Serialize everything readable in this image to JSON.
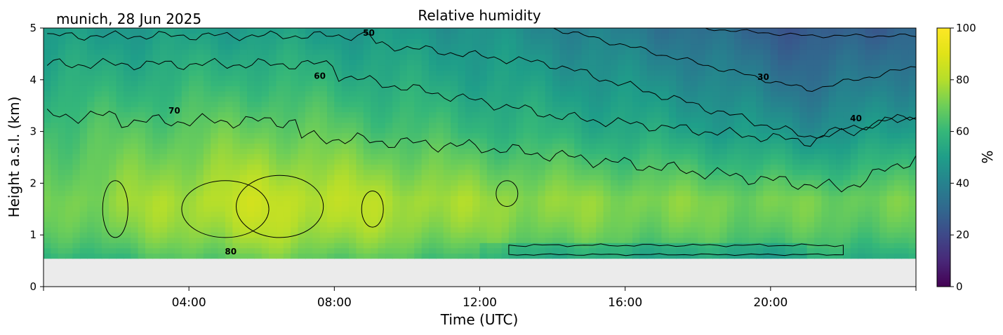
{
  "header": {
    "location_date": "munich, 28 Jun 2025",
    "title": "Relative humidity"
  },
  "chart_data": {
    "type": "heatmap",
    "title": "Relative humidity",
    "xlabel": "Time (UTC)",
    "ylabel": "Height a.s.l. (km)",
    "xlim_hours": [
      0,
      24
    ],
    "ylim": [
      0,
      5
    ],
    "x_ticks": [
      "04:00",
      "08:00",
      "12:00",
      "16:00",
      "20:00"
    ],
    "y_ticks": [
      "0",
      "1",
      "2",
      "3",
      "4",
      "5"
    ],
    "data_bottom_km": 0.55,
    "colorbar": {
      "label": "%",
      "range": [
        0,
        100
      ],
      "ticks": [
        "0",
        "20",
        "40",
        "60",
        "80",
        "100"
      ],
      "colormap": "viridis"
    },
    "missing_color": "#ebebeb",
    "contour_labels": [
      {
        "text": "80",
        "hour": 5.15,
        "km": 0.62
      },
      {
        "text": "70",
        "hour": 3.6,
        "km": 3.35
      },
      {
        "text": "60",
        "hour": 7.6,
        "km": 4.02
      },
      {
        "text": "50",
        "hour": 8.95,
        "km": 4.85
      },
      {
        "text": "30",
        "hour": 19.8,
        "km": 4.0
      },
      {
        "text": "40",
        "hour": 22.35,
        "km": 3.2
      }
    ],
    "contour_levels": [
      30,
      40,
      50,
      60,
      70,
      80
    ],
    "humidity_profile_summary": [
      {
        "time": "00:00",
        "km_1_7": 70,
        "km_3": 63,
        "km_4": 55,
        "km_5": 48
      },
      {
        "time": "06:00",
        "km_1_7": 84,
        "km_3": 70,
        "km_4": 60,
        "km_5": 50
      },
      {
        "time": "12:00",
        "km_1_7": 76,
        "km_3": 60,
        "km_4": 52,
        "km_5": 46
      },
      {
        "time": "18:00",
        "km_1_7": 72,
        "km_3": 52,
        "km_4": 43,
        "km_5": 33
      },
      {
        "time": "21:00",
        "km_1_7": 70,
        "km_3": 45,
        "km_4": 33,
        "km_5": 24
      },
      {
        "time": "24:00",
        "km_1_7": 70,
        "km_3": 50,
        "km_4": 40,
        "km_5": 30
      }
    ]
  }
}
